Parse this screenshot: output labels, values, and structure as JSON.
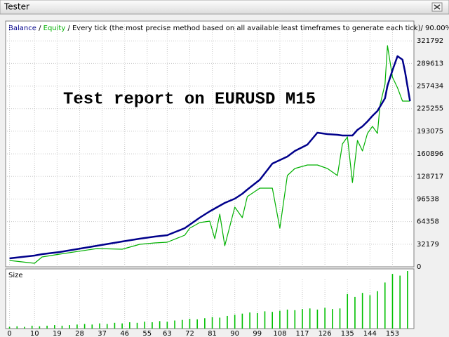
{
  "window": {
    "title": "Tester"
  },
  "chart_data": {
    "type": "line",
    "subtitle": "/ Every tick (the most precise method based on all available least timeframes to generate each tick)/ 90.00%",
    "annotation": "Test report on EURUSD M15",
    "x": [
      0,
      10,
      13,
      20,
      35,
      45,
      52,
      58,
      63,
      70,
      72,
      76,
      80,
      82,
      84,
      86,
      90,
      93,
      95,
      100,
      105,
      108,
      111,
      114,
      119,
      123,
      127,
      131,
      133,
      135,
      137,
      139,
      141,
      143,
      145,
      147,
      148,
      150,
      151,
      153,
      155,
      157,
      158,
      160
    ],
    "series": [
      {
        "name": "Balance",
        "color": "#00008b",
        "values": [
          12000,
          16000,
          18000,
          21000,
          30000,
          36000,
          40000,
          43000,
          45000,
          55000,
          60000,
          70000,
          79000,
          83000,
          87000,
          91000,
          97000,
          104000,
          110000,
          124000,
          147000,
          152000,
          157000,
          165000,
          174000,
          191000,
          189000,
          188000,
          187000,
          187000,
          187000,
          195000,
          200000,
          207000,
          215000,
          222000,
          228000,
          240000,
          258000,
          280000,
          300000,
          295000,
          278000,
          236000
        ]
      },
      {
        "name": "Equity",
        "color": "#00b000",
        "values": [
          9000,
          5000,
          14000,
          18000,
          26000,
          25000,
          32000,
          34000,
          35000,
          45000,
          55000,
          63000,
          65000,
          40000,
          75000,
          30000,
          85000,
          70000,
          100000,
          112000,
          112000,
          55000,
          130000,
          140000,
          145000,
          145000,
          140000,
          130000,
          175000,
          185000,
          120000,
          180000,
          165000,
          190000,
          200000,
          190000,
          230000,
          260000,
          315000,
          270000,
          255000,
          236000,
          236000,
          236000
        ]
      }
    ],
    "xlim": [
      -1,
      161
    ],
    "xticks": [
      0,
      10,
      19,
      28,
      37,
      46,
      55,
      63,
      72,
      81,
      90,
      99,
      108,
      117,
      126,
      135,
      144,
      153
    ],
    "ylim": [
      0,
      346000
    ],
    "yticks": [
      0,
      32179,
      64358,
      96538,
      128717,
      160896,
      193075,
      225255,
      257434,
      289613,
      321792
    ],
    "grid": true,
    "size_panel": {
      "label": "Size",
      "color": "#00c000",
      "ylim": [
        0,
        100
      ],
      "x": [
        0,
        3,
        6,
        9,
        12,
        15,
        18,
        21,
        24,
        27,
        30,
        33,
        36,
        39,
        42,
        45,
        48,
        51,
        54,
        57,
        60,
        63,
        66,
        69,
        72,
        75,
        78,
        81,
        84,
        87,
        90,
        93,
        96,
        99,
        102,
        105,
        108,
        111,
        114,
        117,
        120,
        123,
        126,
        129,
        132,
        135,
        138,
        141,
        144,
        147,
        150,
        153,
        156,
        159
      ],
      "values": [
        3,
        4,
        3,
        5,
        4,
        5,
        6,
        5,
        6,
        7,
        8,
        7,
        9,
        8,
        10,
        9,
        11,
        10,
        12,
        11,
        13,
        12,
        14,
        15,
        17,
        16,
        18,
        20,
        19,
        22,
        24,
        26,
        28,
        27,
        30,
        29,
        31,
        33,
        32,
        34,
        35,
        33,
        36,
        34,
        35,
        60,
        55,
        62,
        58,
        65,
        80,
        95,
        92,
        100
      ]
    }
  }
}
